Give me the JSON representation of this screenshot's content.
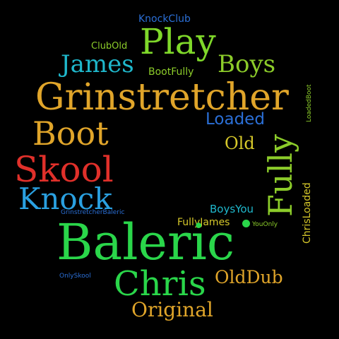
{
  "words": [
    {
      "text": "KnockClub",
      "color": "#2b6fd6"
    },
    {
      "text": "ClubOld",
      "color": "#8ccc2a"
    },
    {
      "text": "Play",
      "color": "#7fd82a"
    },
    {
      "text": "James",
      "color": "#1fb8cc"
    },
    {
      "text": "BootFully",
      "color": "#8ccc2a"
    },
    {
      "text": "Boys",
      "color": "#8ccc2a"
    },
    {
      "text": "Grinstretcher",
      "color": "#e0a52a"
    },
    {
      "text": "Loaded",
      "color": "#2b6fd6"
    },
    {
      "text": "Boot",
      "color": "#e0a52a"
    },
    {
      "text": "Old",
      "color": "#d6c82a"
    },
    {
      "text": "LoadedBoot",
      "color": "#8ccc2a"
    },
    {
      "text": "Fully",
      "color": "#8ccc2a"
    },
    {
      "text": "Skool",
      "color": "#e0302a"
    },
    {
      "text": "ChrisLoaded",
      "color": "#d6c82a"
    },
    {
      "text": "Knock",
      "color": "#2aa0e0"
    },
    {
      "text": "BoysYou",
      "color": "#1fb8cc"
    },
    {
      "text": "GrinstretcherBaleric",
      "color": "#2b6fd6"
    },
    {
      "text": "FullyJames",
      "color": "#d6c82a"
    },
    {
      "text": "YouOnly",
      "color": "#8ccc2a"
    },
    {
      "text": "Baleric",
      "color": "#2ad64a"
    },
    {
      "text": "OnlySkool",
      "color": "#2b6fd6"
    },
    {
      "text": "OldDub",
      "color": "#e0a52a"
    },
    {
      "text": "Chris",
      "color": "#2ad64a"
    },
    {
      "text": "Original",
      "color": "#e0a52a"
    }
  ],
  "dot_color": "#2ad64a"
}
